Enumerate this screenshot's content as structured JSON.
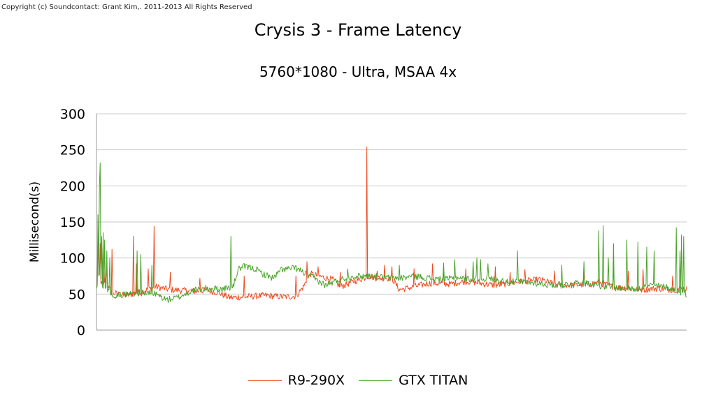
{
  "copyright": "Copyright (c) Soundcontact: Grant Kim,. 2011-2013 All Rights Reserved",
  "chart_data": {
    "type": "line",
    "title": "Crysis 3 - Frame Latency",
    "subtitle": "5760*1080 - Ultra, MSAA 4x",
    "xlabel": "",
    "ylabel": "Millisecond(s)",
    "ylim": [
      0,
      300
    ],
    "yticks": [
      0,
      50,
      100,
      150,
      200,
      250,
      300
    ],
    "grid": true,
    "legend_position": "bottom",
    "samples": 800,
    "series": [
      {
        "name": "R9-290X",
        "color": "#ef4a1f",
        "baseline": [
          [
            0,
            62
          ],
          [
            4,
            75
          ],
          [
            8,
            60
          ],
          [
            12,
            70
          ],
          [
            20,
            52
          ],
          [
            40,
            48
          ],
          [
            60,
            53
          ],
          [
            80,
            60
          ],
          [
            100,
            56
          ],
          [
            130,
            54
          ],
          [
            150,
            55
          ],
          [
            165,
            52
          ],
          [
            180,
            45
          ],
          [
            200,
            46
          ],
          [
            230,
            48
          ],
          [
            255,
            46
          ],
          [
            270,
            47
          ],
          [
            280,
            60
          ],
          [
            290,
            78
          ],
          [
            300,
            75
          ],
          [
            320,
            70
          ],
          [
            330,
            60
          ],
          [
            350,
            68
          ],
          [
            370,
            75
          ],
          [
            380,
            72
          ],
          [
            400,
            72
          ],
          [
            410,
            56
          ],
          [
            430,
            60
          ],
          [
            450,
            65
          ],
          [
            480,
            64
          ],
          [
            500,
            68
          ],
          [
            520,
            65
          ],
          [
            540,
            62
          ],
          [
            560,
            65
          ],
          [
            580,
            68
          ],
          [
            600,
            70
          ],
          [
            620,
            64
          ],
          [
            640,
            62
          ],
          [
            660,
            63
          ],
          [
            680,
            66
          ],
          [
            700,
            60
          ],
          [
            720,
            58
          ],
          [
            740,
            56
          ],
          [
            760,
            58
          ],
          [
            780,
            56
          ],
          [
            799,
            58
          ]
        ],
        "spikes": [
          [
            2,
            125
          ],
          [
            5,
            120
          ],
          [
            10,
            90
          ],
          [
            14,
            88
          ],
          [
            21,
            112
          ],
          [
            50,
            130
          ],
          [
            54,
            92
          ],
          [
            70,
            85
          ],
          [
            78,
            144
          ],
          [
            100,
            80
          ],
          [
            140,
            72
          ],
          [
            200,
            75
          ],
          [
            270,
            75
          ],
          [
            285,
            95
          ],
          [
            300,
            88
          ],
          [
            330,
            80
          ],
          [
            366,
            254
          ],
          [
            380,
            82
          ],
          [
            390,
            90
          ],
          [
            400,
            88
          ],
          [
            430,
            85
          ],
          [
            455,
            92
          ],
          [
            470,
            80
          ],
          [
            500,
            85
          ],
          [
            540,
            88
          ],
          [
            560,
            80
          ],
          [
            580,
            84
          ],
          [
            620,
            82
          ],
          [
            660,
            80
          ],
          [
            700,
            88
          ],
          [
            720,
            82
          ],
          [
            740,
            84
          ],
          [
            780,
            75
          ]
        ]
      },
      {
        "name": "GTX TITAN",
        "color": "#4aa32a",
        "baseline": [
          [
            0,
            55
          ],
          [
            4,
            80
          ],
          [
            8,
            62
          ],
          [
            15,
            55
          ],
          [
            25,
            48
          ],
          [
            60,
            52
          ],
          [
            80,
            50
          ],
          [
            95,
            42
          ],
          [
            110,
            45
          ],
          [
            130,
            55
          ],
          [
            150,
            58
          ],
          [
            170,
            57
          ],
          [
            185,
            60
          ],
          [
            192,
            85
          ],
          [
            200,
            88
          ],
          [
            215,
            85
          ],
          [
            225,
            78
          ],
          [
            240,
            72
          ],
          [
            250,
            84
          ],
          [
            270,
            86
          ],
          [
            280,
            80
          ],
          [
            290,
            75
          ],
          [
            310,
            62
          ],
          [
            330,
            70
          ],
          [
            350,
            75
          ],
          [
            370,
            75
          ],
          [
            390,
            73
          ],
          [
            410,
            72
          ],
          [
            430,
            75
          ],
          [
            450,
            72
          ],
          [
            470,
            70
          ],
          [
            490,
            73
          ],
          [
            510,
            70
          ],
          [
            530,
            72
          ],
          [
            550,
            68
          ],
          [
            570,
            67
          ],
          [
            590,
            66
          ],
          [
            610,
            63
          ],
          [
            630,
            62
          ],
          [
            650,
            66
          ],
          [
            670,
            64
          ],
          [
            690,
            60
          ],
          [
            710,
            58
          ],
          [
            730,
            57
          ],
          [
            750,
            62
          ],
          [
            770,
            60
          ],
          [
            785,
            55
          ],
          [
            799,
            50
          ]
        ],
        "spikes": [
          [
            2,
            160
          ],
          [
            4,
            200
          ],
          [
            5,
            232
          ],
          [
            7,
            130
          ],
          [
            9,
            135
          ],
          [
            11,
            125
          ],
          [
            14,
            110
          ],
          [
            18,
            100
          ],
          [
            55,
            110
          ],
          [
            60,
            105
          ],
          [
            75,
            90
          ],
          [
            182,
            130
          ],
          [
            340,
            85
          ],
          [
            410,
            90
          ],
          [
            470,
            93
          ],
          [
            485,
            98
          ],
          [
            510,
            95
          ],
          [
            515,
            100
          ],
          [
            520,
            98
          ],
          [
            530,
            92
          ],
          [
            570,
            110
          ],
          [
            630,
            90
          ],
          [
            660,
            95
          ],
          [
            680,
            138
          ],
          [
            686,
            145
          ],
          [
            693,
            100
          ],
          [
            700,
            120
          ],
          [
            718,
            125
          ],
          [
            733,
            122
          ],
          [
            745,
            115
          ],
          [
            755,
            110
          ],
          [
            785,
            142
          ],
          [
            790,
            110
          ],
          [
            792,
            132
          ],
          [
            795,
            130
          ]
        ]
      }
    ]
  }
}
